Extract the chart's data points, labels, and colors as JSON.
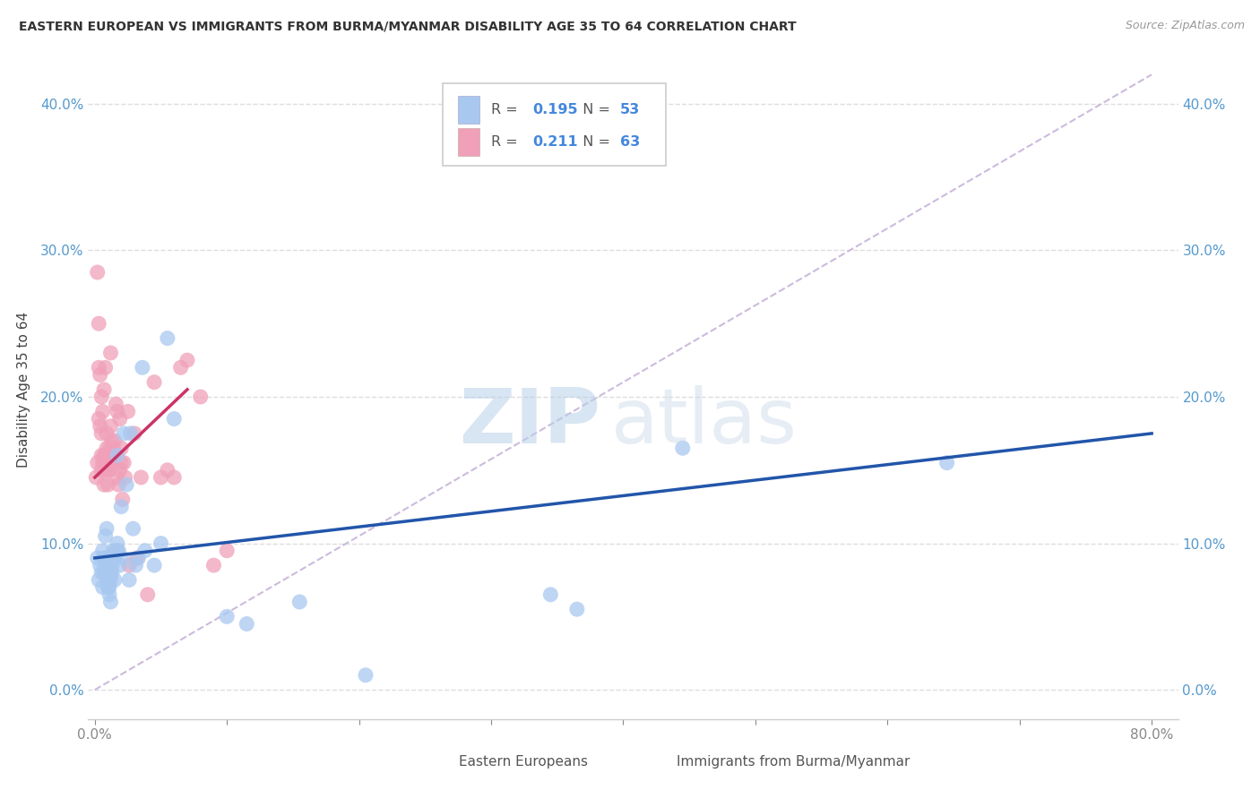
{
  "title": "EASTERN EUROPEAN VS IMMIGRANTS FROM BURMA/MYANMAR DISABILITY AGE 35 TO 64 CORRELATION CHART",
  "source": "Source: ZipAtlas.com",
  "xlabel_ticks": [
    "0.0%",
    "",
    "",
    "",
    "",
    "",
    "",
    "",
    "80.0%"
  ],
  "xlabel_vals": [
    0,
    10,
    20,
    30,
    40,
    50,
    60,
    70,
    80
  ],
  "ylabel_ticks": [
    "0.0%",
    "10.0%",
    "20.0%",
    "30.0%",
    "40.0%"
  ],
  "ylabel_vals": [
    0,
    10,
    20,
    30,
    40
  ],
  "xlim": [
    -0.5,
    82
  ],
  "ylim": [
    -2,
    43
  ],
  "ylabel": "Disability Age 35 to 64",
  "legend_blue_r": "0.195",
  "legend_blue_n": "53",
  "legend_pink_r": "0.211",
  "legend_pink_n": "63",
  "legend_blue_label": "Eastern Europeans",
  "legend_pink_label": "Immigrants from Burma/Myanmar",
  "blue_color": "#a8c8f0",
  "pink_color": "#f0a0b8",
  "blue_line_color": "#2255aa",
  "pink_line_color": "#cc3366",
  "dashed_line_color": "#ccbbdd",
  "watermark_zip": "ZIP",
  "watermark_atlas": "atlas",
  "blue_scatter": [
    [
      0.2,
      9.0
    ],
    [
      0.3,
      7.5
    ],
    [
      0.4,
      8.5
    ],
    [
      0.5,
      8.0
    ],
    [
      0.6,
      9.5
    ],
    [
      0.6,
      7.0
    ],
    [
      0.7,
      8.0
    ],
    [
      0.7,
      9.0
    ],
    [
      0.8,
      8.5
    ],
    [
      0.8,
      10.5
    ],
    [
      0.9,
      11.0
    ],
    [
      0.9,
      8.0
    ],
    [
      1.0,
      7.0
    ],
    [
      1.0,
      9.0
    ],
    [
      1.0,
      7.5
    ],
    [
      1.1,
      6.5
    ],
    [
      1.1,
      7.0
    ],
    [
      1.2,
      8.0
    ],
    [
      1.2,
      7.5
    ],
    [
      1.2,
      6.0
    ],
    [
      1.3,
      8.5
    ],
    [
      1.3,
      8.0
    ],
    [
      1.4,
      9.5
    ],
    [
      1.5,
      9.0
    ],
    [
      1.5,
      7.5
    ],
    [
      1.6,
      9.5
    ],
    [
      1.7,
      10.0
    ],
    [
      1.7,
      16.0
    ],
    [
      1.8,
      9.5
    ],
    [
      1.9,
      8.5
    ],
    [
      2.0,
      12.5
    ],
    [
      2.1,
      9.0
    ],
    [
      2.2,
      17.5
    ],
    [
      2.4,
      14.0
    ],
    [
      2.6,
      7.5
    ],
    [
      2.7,
      17.5
    ],
    [
      2.9,
      11.0
    ],
    [
      3.1,
      8.5
    ],
    [
      3.3,
      9.0
    ],
    [
      3.6,
      22.0
    ],
    [
      3.8,
      9.5
    ],
    [
      4.5,
      8.5
    ],
    [
      5.0,
      10.0
    ],
    [
      5.5,
      24.0
    ],
    [
      6.0,
      18.5
    ],
    [
      10.0,
      5.0
    ],
    [
      11.5,
      4.5
    ],
    [
      15.5,
      6.0
    ],
    [
      20.5,
      1.0
    ],
    [
      34.5,
      6.5
    ],
    [
      36.5,
      5.5
    ],
    [
      44.5,
      16.5
    ],
    [
      64.5,
      15.5
    ]
  ],
  "pink_scatter": [
    [
      0.1,
      14.5
    ],
    [
      0.2,
      28.5
    ],
    [
      0.2,
      15.5
    ],
    [
      0.3,
      25.0
    ],
    [
      0.3,
      22.0
    ],
    [
      0.3,
      18.5
    ],
    [
      0.4,
      21.5
    ],
    [
      0.4,
      18.0
    ],
    [
      0.5,
      17.5
    ],
    [
      0.5,
      20.0
    ],
    [
      0.5,
      16.0
    ],
    [
      0.5,
      15.0
    ],
    [
      0.6,
      19.0
    ],
    [
      0.6,
      15.5
    ],
    [
      0.7,
      20.5
    ],
    [
      0.7,
      16.0
    ],
    [
      0.7,
      14.0
    ],
    [
      0.8,
      16.0
    ],
    [
      0.8,
      15.0
    ],
    [
      0.8,
      22.0
    ],
    [
      0.9,
      17.5
    ],
    [
      0.9,
      16.5
    ],
    [
      1.0,
      16.0
    ],
    [
      1.0,
      15.0
    ],
    [
      1.0,
      14.0
    ],
    [
      1.1,
      16.5
    ],
    [
      1.1,
      15.0
    ],
    [
      1.2,
      18.0
    ],
    [
      1.2,
      23.0
    ],
    [
      1.3,
      17.0
    ],
    [
      1.3,
      16.0
    ],
    [
      1.3,
      15.5
    ],
    [
      1.4,
      16.5
    ],
    [
      1.4,
      15.5
    ],
    [
      1.5,
      17.0
    ],
    [
      1.5,
      16.0
    ],
    [
      1.6,
      19.5
    ],
    [
      1.7,
      19.0
    ],
    [
      1.7,
      14.5
    ],
    [
      1.7,
      9.5
    ],
    [
      1.8,
      14.0
    ],
    [
      1.9,
      15.0
    ],
    [
      1.9,
      18.5
    ],
    [
      2.0,
      16.5
    ],
    [
      2.0,
      15.5
    ],
    [
      2.1,
      13.0
    ],
    [
      2.2,
      15.5
    ],
    [
      2.3,
      14.5
    ],
    [
      2.5,
      19.0
    ],
    [
      2.6,
      8.5
    ],
    [
      3.0,
      17.5
    ],
    [
      3.2,
      9.0
    ],
    [
      3.5,
      14.5
    ],
    [
      4.0,
      6.5
    ],
    [
      4.5,
      21.0
    ],
    [
      5.0,
      14.5
    ],
    [
      5.5,
      15.0
    ],
    [
      6.0,
      14.5
    ],
    [
      6.5,
      22.0
    ],
    [
      7.0,
      22.5
    ],
    [
      8.0,
      20.0
    ],
    [
      9.0,
      8.5
    ],
    [
      10.0,
      9.5
    ]
  ],
  "blue_line_x": [
    0,
    80
  ],
  "blue_line_y": [
    9.0,
    17.5
  ],
  "pink_line_x": [
    0,
    7
  ],
  "pink_line_y": [
    14.5,
    20.5
  ],
  "dash_line_x": [
    0,
    80
  ],
  "dash_line_y": [
    0,
    42
  ]
}
